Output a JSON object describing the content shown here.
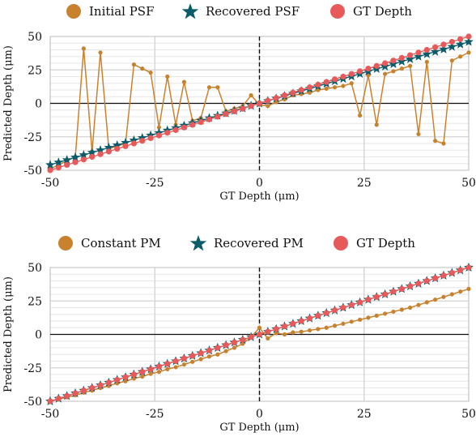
{
  "chart_data": [
    {
      "type": "line",
      "legend": [
        "Initial PSF",
        "Recovered PSF",
        "GT Depth"
      ],
      "xlabel": "GT Depth (μm)",
      "ylabel": "Predicted Depth (μm)",
      "xlim": [
        -50,
        50
      ],
      "ylim": [
        -50,
        50
      ],
      "xticks": [
        "-50",
        "-25",
        "0",
        "25",
        "50"
      ],
      "yticks": [
        "-50",
        "-25",
        "0",
        "25",
        "50"
      ],
      "grid": true,
      "legend_position": "top",
      "x": [
        -50,
        -48,
        -46,
        -44,
        -42,
        -40,
        -38,
        -36,
        -34,
        -32,
        -30,
        -28,
        -26,
        -24,
        -22,
        -20,
        -18,
        -16,
        -14,
        -12,
        -10,
        -8,
        -6,
        -4,
        -2,
        0,
        2,
        4,
        6,
        8,
        10,
        12,
        14,
        16,
        18,
        20,
        22,
        24,
        26,
        28,
        30,
        32,
        34,
        36,
        38,
        40,
        42,
        44,
        46,
        48,
        50
      ],
      "series": [
        {
          "name": "Initial PSF",
          "color": "#c8822e",
          "marker": "circle",
          "values": [
            -49,
            -46,
            -43,
            -40,
            41,
            -36,
            38,
            -34,
            -32,
            -30,
            29,
            26,
            23,
            -18,
            20,
            -16,
            16,
            -13,
            -11,
            12,
            12,
            -6,
            -4,
            -2,
            6,
            -1,
            -2,
            1,
            3,
            6,
            7,
            8,
            10,
            11,
            12,
            13,
            15,
            -9,
            21,
            -16,
            22,
            24,
            26,
            28,
            -23,
            31,
            -28,
            -30,
            32,
            35,
            38
          ],
          "values_note": ""
        },
        {
          "name": "Recovered PSF",
          "color": "#0b5b6b",
          "marker": "star",
          "values": [
            -46,
            -44.1,
            -42.3,
            -40.4,
            -38.6,
            -36.8,
            -35,
            -33.1,
            -31.3,
            -29.4,
            -27.6,
            -25.8,
            -23.9,
            -22.1,
            -20.2,
            -18.4,
            -16.6,
            -14.7,
            -12.9,
            -11,
            -9.2,
            -7.4,
            -5.5,
            -3.7,
            -1.8,
            0,
            1.8,
            3.7,
            5.5,
            7.4,
            9.2,
            11,
            12.9,
            14.7,
            16.6,
            18.4,
            20.2,
            22.1,
            23.9,
            25.8,
            27.6,
            29.4,
            31.3,
            33.1,
            35,
            36.8,
            38.6,
            40.4,
            42.3,
            44.1,
            46
          ]
        },
        {
          "name": "GT Depth",
          "color": "#e85a5a",
          "marker": "circle",
          "values": [
            -50,
            -48,
            -46,
            -44,
            -42,
            -40,
            -38,
            -36,
            -34,
            -32,
            -30,
            -28,
            -26,
            -24,
            -22,
            -20,
            -18,
            -16,
            -14,
            -12,
            -10,
            -8,
            -6,
            -4,
            -2,
            0,
            2,
            4,
            6,
            8,
            10,
            12,
            14,
            16,
            18,
            20,
            22,
            24,
            26,
            28,
            30,
            32,
            34,
            36,
            38,
            40,
            42,
            44,
            46,
            48,
            50
          ]
        }
      ]
    },
    {
      "type": "line",
      "legend": [
        "Constant PM",
        "Recovered PM",
        "GT Depth"
      ],
      "xlabel": "GT Depth (μm)",
      "ylabel": "Predicted Depth (μm)",
      "xlim": [
        -50,
        50
      ],
      "ylim": [
        -50,
        50
      ],
      "xticks": [
        "-50",
        "-25",
        "0",
        "25",
        "50"
      ],
      "yticks": [
        "-50",
        "-25",
        "0",
        "25",
        "50"
      ],
      "grid": true,
      "legend_position": "top",
      "x": [
        -50,
        -48,
        -46,
        -44,
        -42,
        -40,
        -38,
        -36,
        -34,
        -32,
        -30,
        -28,
        -26,
        -24,
        -22,
        -20,
        -18,
        -16,
        -14,
        -12,
        -10,
        -8,
        -6,
        -4,
        -2,
        0,
        2,
        4,
        6,
        8,
        10,
        12,
        14,
        16,
        18,
        20,
        22,
        24,
        26,
        28,
        30,
        32,
        34,
        36,
        38,
        40,
        42,
        44,
        46,
        48,
        50
      ],
      "series": [
        {
          "name": "Constant PM",
          "color": "#c8822e",
          "marker": "circle",
          "values": [
            -50,
            -48.5,
            -47,
            -45.5,
            -43.5,
            -42,
            -40,
            -38.5,
            -36.5,
            -35,
            -33,
            -31.5,
            -29.5,
            -28,
            -26,
            -24.5,
            -22.5,
            -20.5,
            -18.5,
            -16.5,
            -15,
            -12.5,
            -10,
            -7,
            -2,
            5,
            -3,
            1,
            0,
            1.5,
            2,
            3,
            4,
            5,
            6.5,
            8,
            9.5,
            11,
            12.5,
            14,
            15.5,
            17,
            18.5,
            20,
            22,
            24,
            26,
            28,
            30,
            32,
            34
          ]
        },
        {
          "name": "Recovered PM",
          "color": "#0b5b6b",
          "marker": "star",
          "values": [
            -50,
            -48,
            -46,
            -44,
            -42,
            -40,
            -38,
            -36,
            -34,
            -32,
            -30,
            -28,
            -26,
            -24,
            -22,
            -20,
            -18,
            -16,
            -14,
            -12,
            -10,
            -8,
            -6,
            -4,
            -2,
            0,
            2,
            4,
            6,
            8,
            10,
            12,
            14,
            16,
            18,
            20,
            22,
            24,
            26,
            28,
            30,
            32,
            34,
            36,
            38,
            40,
            42,
            44,
            46,
            48,
            50
          ]
        },
        {
          "name": "GT Depth",
          "color": "#e85a5a",
          "marker": "circle",
          "values": [
            -50,
            -48,
            -46,
            -44,
            -42,
            -40,
            -38,
            -36,
            -34,
            -32,
            -30,
            -28,
            -26,
            -24,
            -22,
            -20,
            -18,
            -16,
            -14,
            -12,
            -10,
            -8,
            -6,
            -4,
            -2,
            0,
            2,
            4,
            6,
            8,
            10,
            12,
            14,
            16,
            18,
            20,
            22,
            24,
            26,
            28,
            30,
            32,
            34,
            36,
            38,
            40,
            42,
            44,
            46,
            48,
            50
          ]
        }
      ]
    }
  ]
}
